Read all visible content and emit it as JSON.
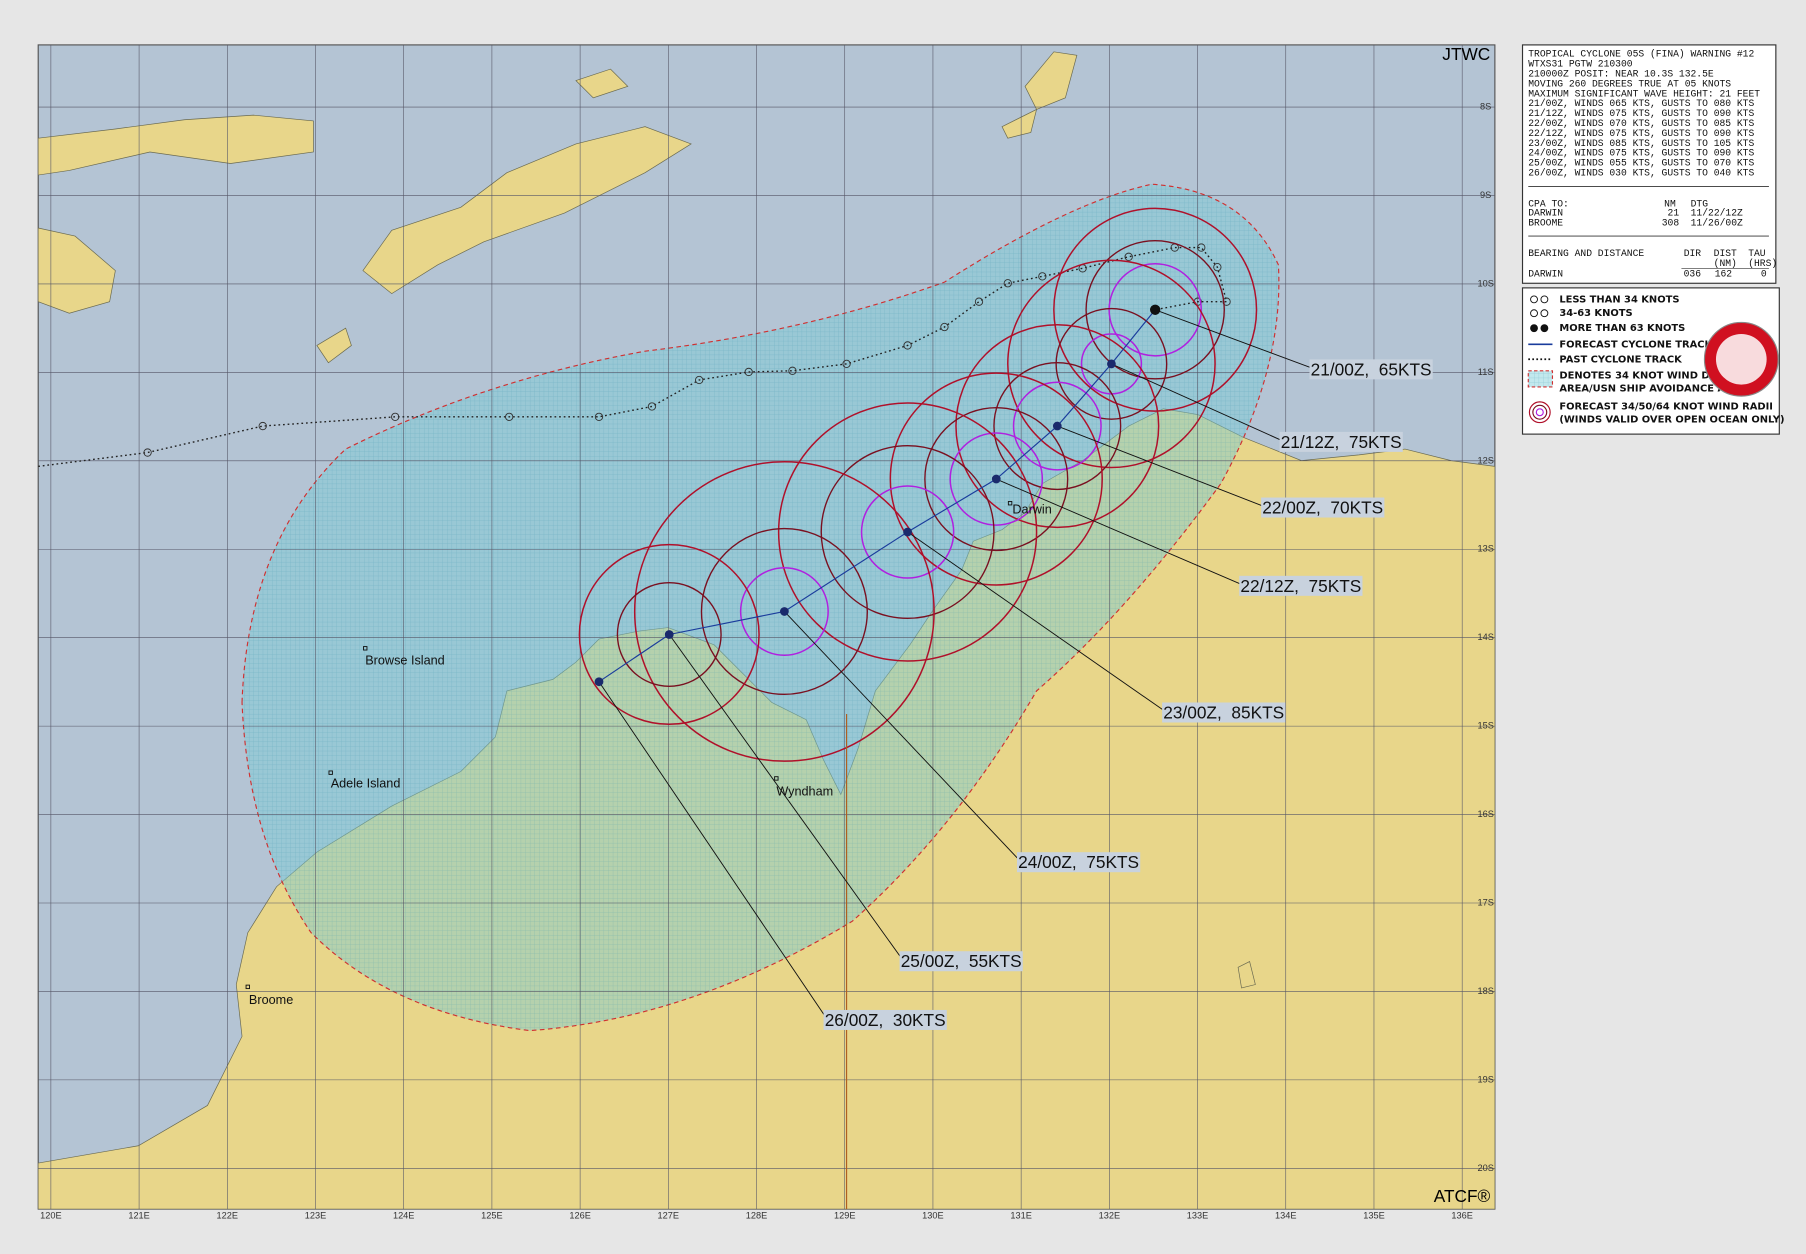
{
  "map": {
    "agency": "JTWC",
    "software": "ATCF®",
    "latitude_labels": [
      "8S",
      "9S",
      "10S",
      "11S",
      "12S",
      "13S",
      "14S",
      "15S",
      "16S",
      "17S",
      "18S",
      "19S",
      "20S"
    ],
    "longitude_labels": [
      "120E",
      "121E",
      "122E",
      "123E",
      "124E",
      "125E",
      "126E",
      "127E",
      "128E",
      "129E",
      "130E",
      "131E",
      "132E",
      "133E",
      "134E",
      "135E",
      "136E"
    ],
    "places": [
      "Darwin",
      "Browse Island",
      "Adele Island",
      "Wyndham",
      "Broome"
    ],
    "forecast_labels": [
      "21/00Z,  65KTS",
      "21/12Z,  75KTS",
      "22/00Z,  70KTS",
      "22/12Z,  75KTS",
      "23/00Z,  85KTS",
      "24/00Z,  75KTS",
      "25/00Z,  55KTS",
      "26/00Z,  30KTS"
    ]
  },
  "warning": {
    "lines": [
      "TROPICAL CYCLONE 05S (FINA) WARNING #12",
      "WTXS31 PGTW 210300",
      "210000Z POSIT: NEAR 10.3S 132.5E",
      "MOVING 260 DEGREES TRUE AT 05 KNOTS",
      "MAXIMUM SIGNIFICANT WAVE HEIGHT: 21 FEET",
      "21/00Z, WINDS 065 KTS, GUSTS TO 080 KTS",
      "21/12Z, WINDS 075 KTS, GUSTS TO 090 KTS",
      "22/00Z, WINDS 070 KTS, GUSTS TO 085 KTS",
      "22/12Z, WINDS 075 KTS, GUSTS TO 090 KTS",
      "23/00Z, WINDS 085 KTS, GUSTS TO 105 KTS",
      "24/00Z, WINDS 075 KTS, GUSTS TO 090 KTS",
      "25/00Z, WINDS 055 KTS, GUSTS TO 070 KTS",
      "26/00Z, WINDS 030 KTS, GUSTS TO 040 KTS"
    ],
    "cpa": {
      "title": "CPA TO:",
      "headers": [
        "NM",
        "DTG"
      ],
      "rows": [
        [
          "DARWIN",
          "21",
          "11/22/12Z"
        ],
        [
          "BROOME",
          "308",
          "11/26/00Z"
        ]
      ]
    },
    "bearing": {
      "title": "BEARING AND DISTANCE",
      "headers": [
        [
          "DIR"
        ],
        [
          "DIST",
          "(NM)"
        ],
        [
          "TAU",
          "(HRS)"
        ]
      ],
      "rows": [
        [
          "DARWIN",
          "036",
          "162",
          "0"
        ]
      ]
    }
  },
  "legend": {
    "items": [
      [
        "LESS THAN 34 KNOTS"
      ],
      [
        "34-63 KNOTS"
      ],
      [
        "MORE THAN 63 KNOTS"
      ],
      [
        "FORECAST CYCLONE TRACK"
      ],
      [
        "PAST CYCLONE TRACK"
      ],
      [
        "DENOTES 34 KNOT WIND DANGER",
        "AREA/USN SHIP AVOIDANCE AREA"
      ],
      [
        "FORECAST 34/50/64 KNOT WIND RADII",
        "(WINDS VALID OVER OPEN OCEAN ONLY)"
      ]
    ]
  }
}
